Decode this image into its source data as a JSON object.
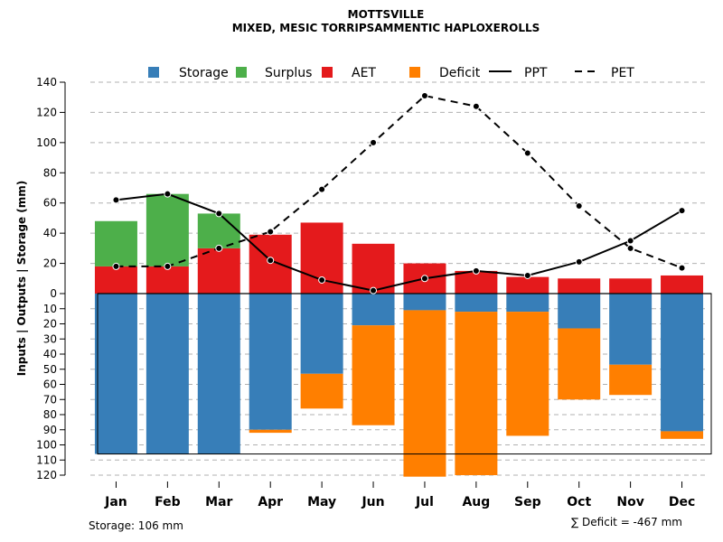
{
  "chart_data": {
    "type": "bar",
    "title": "MOTTSVILLE",
    "subtitle": "MIXED, MESIC TORRIPSAMMENTIC HAPLOXEROLLS",
    "ylabel": "Inputs | Outputs | Storage     (mm)",
    "categories": [
      "Jan",
      "Feb",
      "Mar",
      "Apr",
      "May",
      "Jun",
      "Jul",
      "Aug",
      "Sep",
      "Oct",
      "Nov",
      "Dec"
    ],
    "ylim": [
      -120,
      140
    ],
    "yticks_top": [
      0,
      20,
      40,
      60,
      80,
      100,
      120,
      140
    ],
    "yticks_bottom": [
      10,
      20,
      30,
      40,
      50,
      60,
      70,
      80,
      90,
      100,
      110,
      120
    ],
    "storage_capacity": 106,
    "series": [
      {
        "name": "Storage",
        "color": "#377eb8",
        "values": [
          106,
          106,
          106,
          90,
          53,
          21,
          11,
          12,
          12,
          23,
          47,
          91
        ]
      },
      {
        "name": "Surplus",
        "color": "#4daf4a",
        "values": [
          30,
          48,
          23,
          0,
          0,
          0,
          0,
          0,
          0,
          0,
          0,
          0
        ]
      },
      {
        "name": "AET",
        "color": "#e41a1c",
        "values": [
          18,
          18,
          30,
          39,
          47,
          33,
          20,
          15,
          11,
          10,
          10,
          12
        ]
      },
      {
        "name": "Deficit",
        "color": "#ff7f00",
        "values": [
          0,
          0,
          0,
          2,
          23,
          66,
          110,
          108,
          82,
          47,
          20,
          5
        ]
      },
      {
        "name": "PPT",
        "color": "#000000",
        "style": "solid",
        "values": [
          62,
          66,
          53,
          22,
          9,
          2,
          10,
          15,
          12,
          21,
          35,
          55
        ]
      },
      {
        "name": "PET",
        "color": "#000000",
        "style": "dashed",
        "values": [
          18,
          18,
          30,
          41,
          69,
          100,
          131,
          124,
          93,
          58,
          30,
          17
        ]
      }
    ]
  },
  "notes": {
    "storage": "Storage: 106 mm",
    "deficit": "∑ Deficit = -467 mm"
  }
}
